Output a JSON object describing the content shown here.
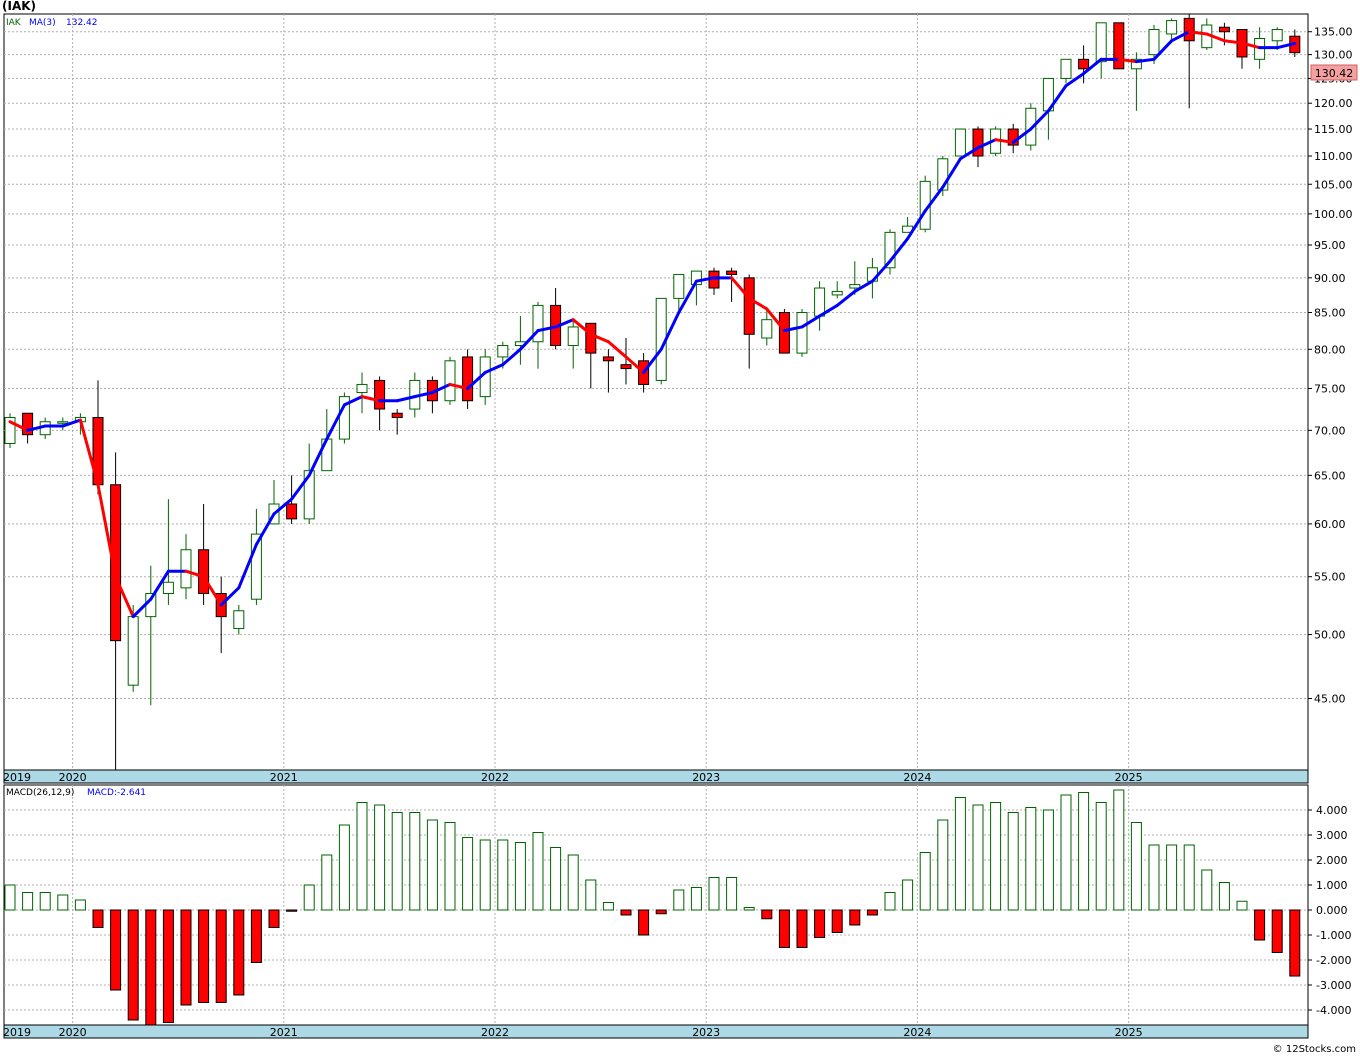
{
  "header": {
    "symbol_label": "(IAK)"
  },
  "watermark": "© 12Stocks.com",
  "colors": {
    "up_candle": "#006400",
    "down_candle": "#ff0000",
    "ma_rising": "#0000ff",
    "ma_falling": "#ff0000",
    "grid": "#b0b0b0",
    "axis_band": "#add8e6",
    "price_tag_bg": "#f4a0a0"
  },
  "chart_data": [
    {
      "type": "candlestick",
      "panel": "price",
      "legend": {
        "symbol": "IAK",
        "ma_label": "MA(3)",
        "ma_value": "132.42"
      },
      "last_price_tag": "130.42",
      "y_scale": "log",
      "ylim": [
        40,
        139
      ],
      "y_ticks": [
        "45.00",
        "50.00",
        "55.00",
        "60.00",
        "65.00",
        "70.00",
        "75.00",
        "80.00",
        "85.00",
        "90.00",
        "95.00",
        "100.00",
        "105.00",
        "110.00",
        "115.00",
        "120.00",
        "125.00",
        "130.00",
        "135.00"
      ],
      "x_tick_labels": [
        "2019",
        "2020",
        "2021",
        "2022",
        "2023",
        "2024",
        "2025"
      ],
      "x_tick_index": [
        0,
        4,
        16,
        28,
        40,
        52,
        64
      ],
      "ohlc": [
        [
          68.5,
          72.0,
          68.0,
          71.5
        ],
        [
          72.0,
          72.0,
          68.5,
          69.5
        ],
        [
          69.5,
          71.5,
          69.0,
          71.0
        ],
        [
          71.0,
          71.5,
          70.0,
          71.0
        ],
        [
          71.0,
          72.0,
          69.5,
          71.5
        ],
        [
          71.5,
          76.0,
          63.0,
          64.0
        ],
        [
          64.0,
          67.5,
          40.0,
          49.5
        ],
        [
          46.0,
          52.5,
          45.5,
          51.5
        ],
        [
          51.5,
          56.0,
          44.5,
          53.5
        ],
        [
          53.5,
          62.5,
          52.5,
          54.5
        ],
        [
          54.0,
          59.0,
          53.0,
          57.5
        ],
        [
          57.5,
          62.0,
          52.5,
          53.5
        ],
        [
          53.5,
          55.0,
          48.5,
          51.5
        ],
        [
          50.5,
          52.5,
          50.0,
          52.0
        ],
        [
          53.0,
          61.5,
          52.5,
          59.0
        ],
        [
          60.0,
          64.5,
          60.0,
          62.0
        ],
        [
          62.0,
          65.0,
          60.0,
          60.5
        ],
        [
          60.5,
          68.5,
          60.0,
          65.5
        ],
        [
          65.5,
          72.5,
          65.5,
          69.0
        ],
        [
          69.0,
          74.5,
          68.5,
          74.0
        ],
        [
          74.5,
          77.0,
          72.0,
          75.5
        ],
        [
          76.0,
          76.5,
          70.0,
          72.5
        ],
        [
          72.0,
          72.5,
          69.5,
          71.5
        ],
        [
          72.5,
          77.0,
          71.5,
          76.0
        ],
        [
          76.0,
          76.5,
          72.0,
          73.5
        ],
        [
          73.5,
          79.0,
          73.0,
          78.5
        ],
        [
          79.0,
          80.0,
          72.5,
          73.5
        ],
        [
          74.0,
          80.0,
          73.0,
          79.0
        ],
        [
          79.0,
          81.0,
          77.5,
          80.5
        ],
        [
          80.5,
          84.5,
          78.0,
          81.0
        ],
        [
          81.0,
          86.5,
          77.5,
          86.0
        ],
        [
          86.0,
          88.5,
          80.0,
          80.5
        ],
        [
          80.5,
          84.0,
          77.5,
          83.0
        ],
        [
          83.5,
          83.5,
          75.0,
          79.5
        ],
        [
          79.0,
          80.0,
          74.5,
          78.5
        ],
        [
          78.0,
          81.5,
          75.5,
          77.5
        ],
        [
          78.5,
          79.5,
          74.5,
          75.5
        ],
        [
          76.0,
          87.0,
          75.5,
          87.0
        ],
        [
          87.0,
          90.5,
          85.0,
          90.5
        ],
        [
          89.0,
          91.0,
          86.0,
          91.0
        ],
        [
          91.0,
          91.5,
          87.5,
          88.5
        ],
        [
          91.0,
          91.5,
          86.5,
          90.5
        ],
        [
          90.0,
          90.5,
          77.5,
          82.0
        ],
        [
          81.5,
          85.5,
          80.5,
          84.0
        ],
        [
          85.0,
          85.5,
          79.5,
          79.5
        ],
        [
          79.5,
          85.5,
          79.0,
          85.0
        ],
        [
          84.5,
          89.5,
          82.5,
          88.5
        ],
        [
          87.5,
          89.5,
          87.0,
          88.0
        ],
        [
          88.5,
          92.5,
          87.5,
          89.0
        ],
        [
          89.5,
          93.0,
          87.0,
          91.5
        ],
        [
          91.5,
          97.5,
          90.5,
          97.0
        ],
        [
          97.0,
          99.5,
          97.0,
          98.0
        ],
        [
          97.5,
          106.5,
          97.0,
          105.5
        ],
        [
          104.0,
          110.0,
          103.0,
          109.5
        ],
        [
          110.0,
          115.0,
          110.0,
          115.0
        ],
        [
          115.0,
          115.5,
          108.0,
          110.0
        ],
        [
          110.5,
          115.5,
          110.0,
          115.0
        ],
        [
          115.0,
          116.0,
          110.5,
          112.0
        ],
        [
          112.0,
          120.0,
          111.0,
          119.0
        ],
        [
          118.5,
          125.0,
          113.0,
          125.0
        ],
        [
          125.0,
          129.0,
          124.0,
          129.0
        ],
        [
          129.0,
          132.0,
          124.0,
          127.0
        ],
        [
          128.5,
          137.0,
          125.0,
          137.0
        ],
        [
          137.0,
          137.0,
          127.0,
          127.0
        ],
        [
          127.0,
          130.5,
          118.5,
          129.0
        ],
        [
          130.0,
          136.5,
          128.0,
          135.5
        ],
        [
          134.5,
          138.0,
          132.5,
          137.5
        ],
        [
          138.0,
          139.0,
          119.0,
          133.0
        ],
        [
          131.5,
          138.0,
          131.0,
          136.5
        ],
        [
          136.0,
          137.0,
          132.0,
          135.0
        ],
        [
          135.5,
          135.5,
          127.0,
          129.5
        ],
        [
          129.0,
          136.0,
          127.0,
          133.5
        ],
        [
          133.0,
          136.0,
          131.0,
          135.5
        ],
        [
          134.0,
          135.5,
          129.5,
          130.42
        ]
      ],
      "ma3": [
        71.0,
        70.0,
        70.5,
        70.5,
        71.2,
        64.0,
        55.0,
        51.5,
        53.0,
        55.5,
        55.5,
        55.0,
        52.5,
        54.0,
        58.0,
        61.0,
        62.5,
        65.0,
        69.0,
        73.0,
        74.0,
        73.5,
        73.5,
        74.0,
        74.5,
        75.5,
        75.0,
        77.0,
        78.0,
        80.0,
        82.5,
        83.0,
        84.0,
        82.0,
        81.0,
        79.0,
        77.0,
        80.0,
        85.0,
        89.5,
        90.0,
        90.0,
        87.0,
        85.5,
        82.5,
        83.0,
        84.5,
        86.0,
        88.0,
        89.5,
        92.5,
        96.0,
        100.5,
        104.5,
        109.5,
        111.5,
        113.0,
        112.5,
        115.0,
        118.5,
        123.5,
        126.0,
        129.0,
        129.0,
        128.5,
        129.0,
        133.0,
        135.0,
        134.5,
        133.0,
        132.5,
        131.5,
        131.5,
        132.42
      ]
    },
    {
      "type": "bar",
      "panel": "macd",
      "legend": {
        "label": "MACD(26,12,9)",
        "value_label": "MACD:-2.641"
      },
      "ylim": [
        -4.6,
        5.0
      ],
      "y_ticks": [
        "4.000",
        "3.000",
        "2.000",
        "1.000",
        "0.000",
        "-1.000",
        "-2.000",
        "-3.000",
        "-4.000"
      ],
      "x_tick_labels": [
        "2019",
        "2020",
        "2021",
        "2022",
        "2023",
        "2024",
        "2025"
      ],
      "values": [
        1.0,
        0.7,
        0.7,
        0.6,
        0.4,
        -0.7,
        -3.2,
        -4.4,
        -4.7,
        -4.5,
        -3.8,
        -3.7,
        -3.7,
        -3.4,
        -2.1,
        -0.7,
        -0.05,
        1.0,
        2.2,
        3.4,
        4.3,
        4.2,
        3.9,
        3.9,
        3.6,
        3.5,
        2.9,
        2.8,
        2.8,
        2.7,
        3.1,
        2.5,
        2.2,
        1.2,
        0.3,
        -0.2,
        -1.0,
        -0.15,
        0.8,
        0.9,
        1.3,
        1.3,
        0.1,
        -0.35,
        -1.5,
        -1.5,
        -1.1,
        -0.9,
        -0.6,
        -0.2,
        0.7,
        1.2,
        2.3,
        3.6,
        4.5,
        4.2,
        4.3,
        3.9,
        4.1,
        4.0,
        4.6,
        4.7,
        4.3,
        4.8,
        3.5,
        2.6,
        2.6,
        2.6,
        1.6,
        1.1,
        0.35,
        -1.2,
        -1.7,
        -2.641
      ]
    }
  ]
}
